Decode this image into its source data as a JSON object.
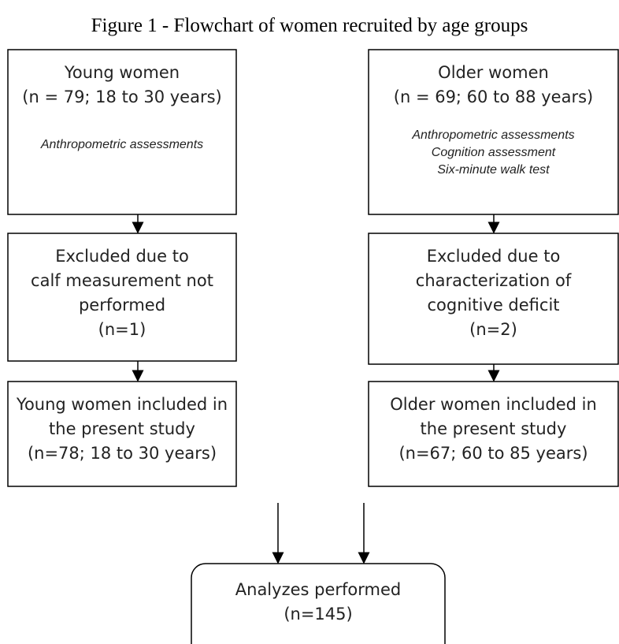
{
  "title": "Figure 1 - Flowchart of women recruited by age groups",
  "nodes": [
    {
      "lines": [
        "Young women",
        "(n = 79; 18 to 30 years)"
      ],
      "notes": [
        "Anthropometric assessments"
      ]
    },
    {
      "lines": [
        "Older women",
        "(n = 69; 60 to 88 years)"
      ],
      "notes": [
        "Anthropometric assessments",
        "Cognition assessment",
        "Six-minute walk test"
      ]
    },
    {
      "lines": [
        "Excluded due to",
        "calf measurement not",
        "performed",
        "(n=1)"
      ],
      "notes": []
    },
    {
      "lines": [
        "Excluded due to",
        "characterization of",
        "cognitive deficit",
        "(n=2)"
      ],
      "notes": []
    },
    {
      "lines": [
        "Young women included in",
        "the present study",
        "(n=78; 18 to 30 years)"
      ],
      "notes": []
    },
    {
      "lines": [
        "Older women included in",
        "the present study",
        "(n=67; 60 to 85 years)"
      ],
      "notes": []
    },
    {
      "lines": [
        "Analyzes performed",
        "(n=145)"
      ],
      "notes": []
    }
  ]
}
